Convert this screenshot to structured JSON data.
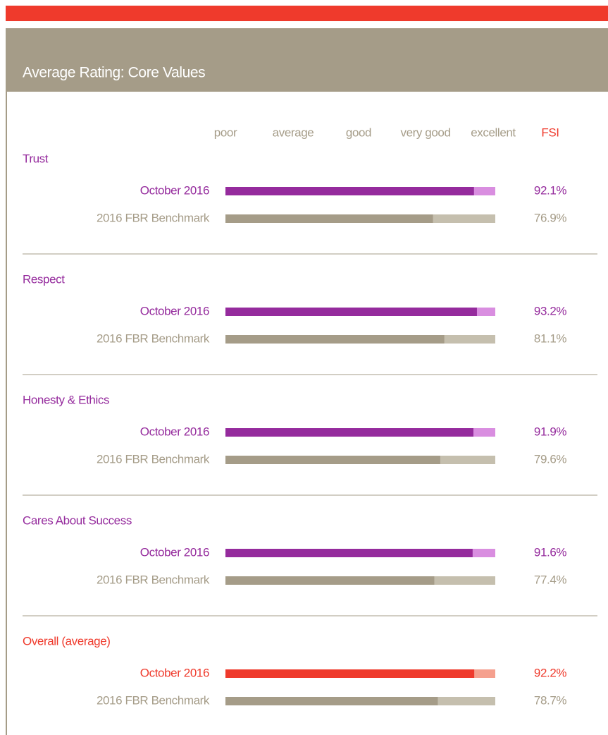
{
  "chart_data": {
    "type": "bar",
    "title": "Average Rating: Core Values",
    "scale_labels": [
      "poor",
      "average",
      "good",
      "very good",
      "excellent"
    ],
    "value_header": "FSI",
    "categories": [
      "Trust",
      "Respect",
      "Honesty & Ethics",
      "Cares About Success",
      "Overall (average)"
    ],
    "category_colors": [
      "#952b9d",
      "#952b9d",
      "#952b9d",
      "#952b9d",
      "#ef3a2c"
    ],
    "xlim": [
      0,
      100
    ],
    "series": [
      {
        "name": "October 2016",
        "colors": [
          "#952b9d",
          "#952b9d",
          "#952b9d",
          "#952b9d",
          "#ef3a2c"
        ],
        "track_colors": [
          "#d98ee0",
          "#d98ee0",
          "#d98ee0",
          "#d98ee0",
          "#f5a08e"
        ],
        "values": [
          92.1,
          93.2,
          91.9,
          91.6,
          92.2
        ],
        "value_labels": [
          "92.1%",
          "93.2%",
          "91.9%",
          "91.6%",
          "92.2%"
        ]
      },
      {
        "name": "2016 FBR Benchmark",
        "colors": [
          "#a59c88",
          "#a59c88",
          "#a59c88",
          "#a59c88",
          "#a59c88"
        ],
        "track_colors": [
          "#c5bfae",
          "#c5bfae",
          "#c5bfae",
          "#c5bfae",
          "#c5bfae"
        ],
        "values": [
          76.9,
          81.1,
          79.6,
          77.4,
          78.7
        ],
        "value_labels": [
          "76.9%",
          "81.1%",
          "79.6%",
          "77.4%",
          "78.7%"
        ]
      }
    ]
  }
}
